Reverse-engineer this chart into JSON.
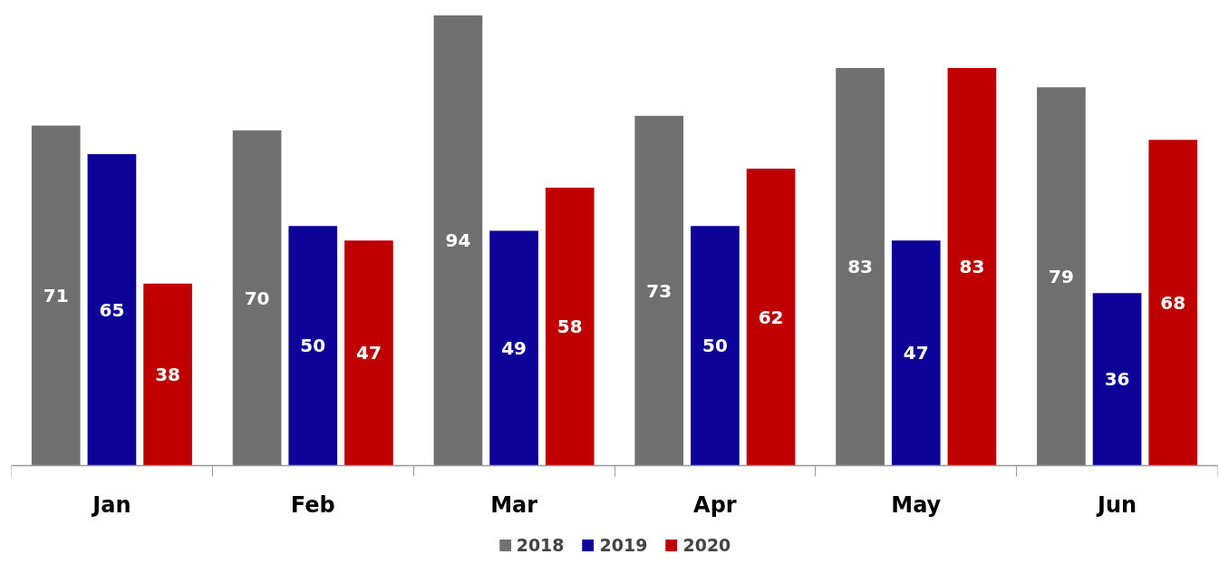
{
  "chart_data": {
    "type": "bar",
    "categories": [
      "Jan",
      "Feb",
      "Mar",
      "Apr",
      "May",
      "Jun"
    ],
    "series": [
      {
        "name": "2018",
        "color": "#707070",
        "values": [
          71,
          70,
          94,
          73,
          83,
          79
        ]
      },
      {
        "name": "2019",
        "color": "#0e0399",
        "values": [
          65,
          50,
          49,
          50,
          47,
          36
        ]
      },
      {
        "name": "2020",
        "color": "#c00000",
        "values": [
          38,
          47,
          58,
          62,
          83,
          68
        ]
      }
    ],
    "data_labels": true,
    "grid": false,
    "legend": "bottom",
    "tick_labels": "x"
  }
}
